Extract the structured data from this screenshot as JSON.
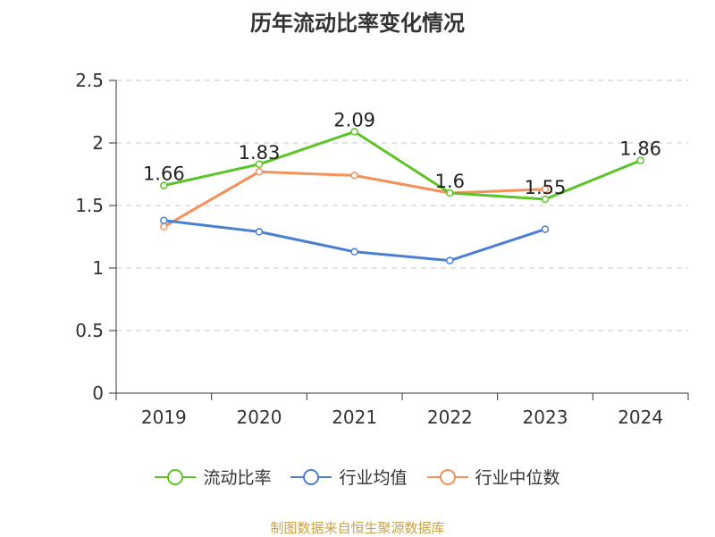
{
  "chart_data": {
    "type": "line",
    "title": "历年流动比率变化情况",
    "categories": [
      "2019",
      "2020",
      "2021",
      "2022",
      "2023",
      "2024"
    ],
    "ylim": [
      0,
      2.5
    ],
    "yticks": [
      "0",
      "0.5",
      "1",
      "1.5",
      "2",
      "2.5"
    ],
    "grid": true,
    "legend_position": "bottom",
    "series": [
      {
        "name": "流动比率",
        "color": "#5cc427",
        "values": [
          1.66,
          1.83,
          2.09,
          1.6,
          1.55,
          1.86
        ],
        "labels": [
          "1.66",
          "1.83",
          "2.09",
          "1.6",
          "1.55",
          "1.86"
        ]
      },
      {
        "name": "行业均值",
        "color": "#4a7fd4",
        "values": [
          1.38,
          1.29,
          1.13,
          1.06,
          1.31,
          null
        ]
      },
      {
        "name": "行业中位数",
        "color": "#f4905a",
        "values": [
          1.33,
          1.77,
          1.74,
          1.6,
          1.63,
          null
        ]
      }
    ]
  },
  "source": "制图数据来自恒生聚源数据库"
}
